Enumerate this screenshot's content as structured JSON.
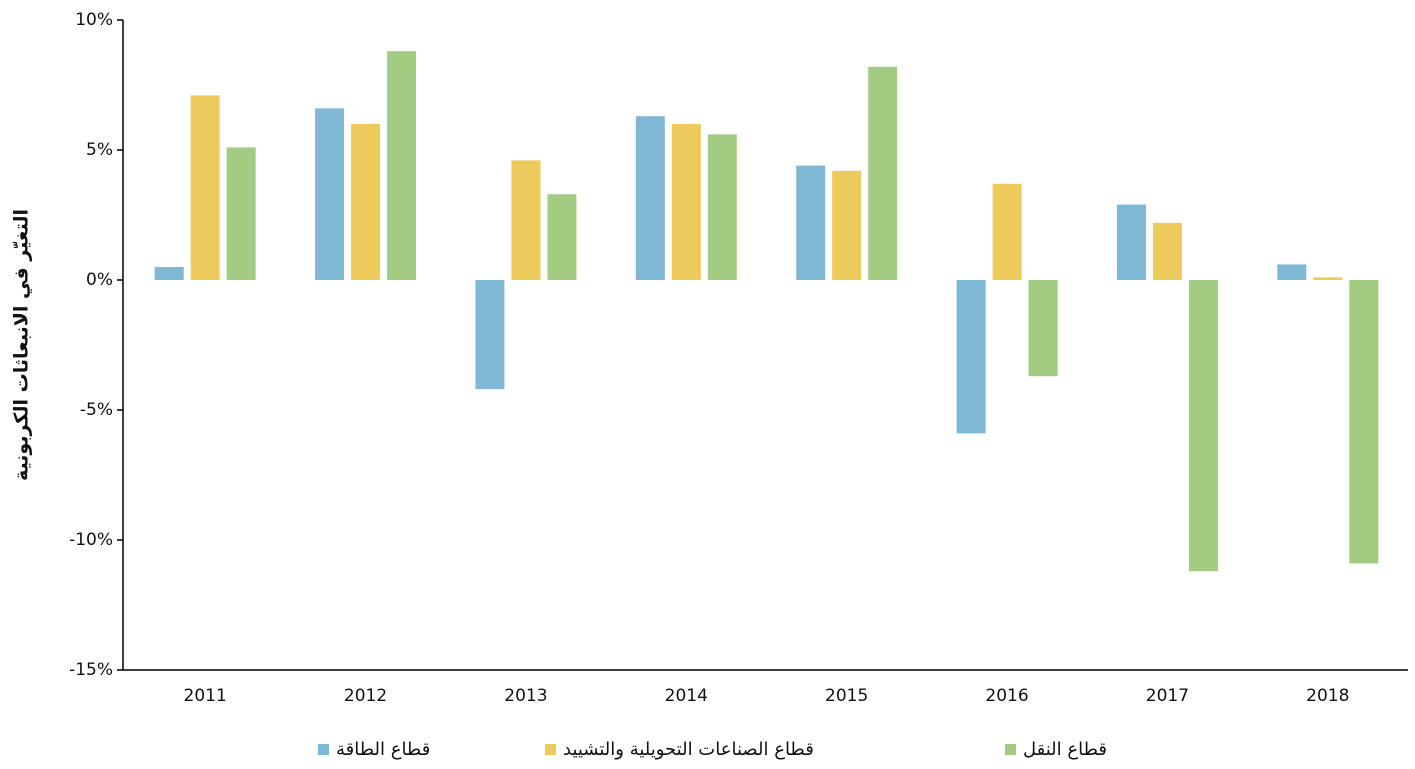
{
  "chart_data": {
    "type": "bar",
    "y_label": "التغيّر في الانبعاثات الكربونية",
    "categories": [
      "2011",
      "2012",
      "2013",
      "2014",
      "2015",
      "2016",
      "2017",
      "2018"
    ],
    "series": [
      {
        "name": "قطاع الطاقة",
        "color": "#7fb8d4",
        "values": [
          0.5,
          6.6,
          -4.2,
          6.3,
          4.4,
          -5.9,
          2.9,
          0.6
        ]
      },
      {
        "name": "قطاع الصناعات التحويلية والتشييد",
        "color": "#ecca5c",
        "values": [
          7.1,
          6.0,
          4.6,
          6.0,
          4.2,
          3.7,
          2.2,
          0.1
        ]
      },
      {
        "name": "قطاع النقل",
        "color": "#a3cc82",
        "values": [
          5.1,
          8.8,
          3.3,
          5.6,
          8.2,
          -3.7,
          -11.2,
          -10.9
        ]
      }
    ],
    "ylim": [
      -15,
      10
    ],
    "yticks": [
      {
        "value": -15,
        "label": "-15%"
      },
      {
        "value": -10,
        "label": "-10%"
      },
      {
        "value": -5,
        "label": "-5%"
      },
      {
        "value": 0,
        "label": "0%"
      },
      {
        "value": 5,
        "label": "5%"
      },
      {
        "value": 10,
        "label": "10%"
      }
    ],
    "grid": false,
    "legend": "bottom"
  }
}
